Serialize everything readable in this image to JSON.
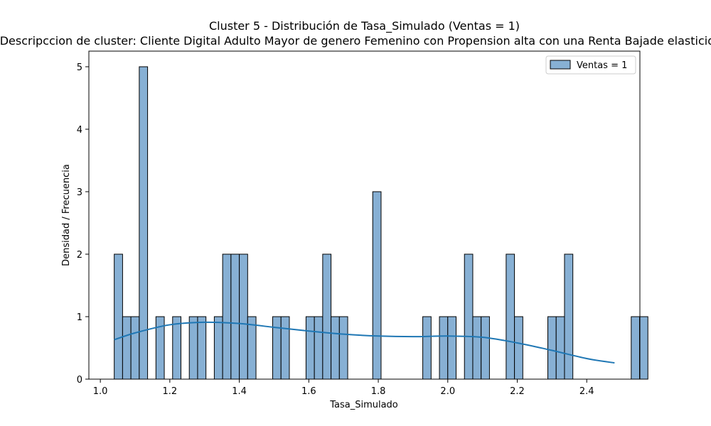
{
  "chart_data": {
    "type": "bar",
    "title": "Cluster 5 - Distribución de Tasa_Simulado (Ventas = 1)",
    "subtitle": "Descripccion de cluster: Cliente Digital Adulto Mayor de genero Femenino con Propension alta con una Renta Bajade elasticidad",
    "xlabel": "Tasa_Simulado",
    "ylabel": "Densidad / Frecuencia",
    "xlim": [
      0.967,
      2.553
    ],
    "ylim": [
      0,
      5.25
    ],
    "xticks": [
      "1.0",
      "1.2",
      "1.4",
      "1.6",
      "1.8",
      "2.0",
      "2.2",
      "2.4"
    ],
    "yticks": [
      "0",
      "1",
      "2",
      "3",
      "4",
      "5"
    ],
    "grid": false,
    "legend": {
      "position": "top-right",
      "entries": [
        "Ventas = 1"
      ]
    },
    "bin_start": 1.04,
    "bin_width": 0.024,
    "series": [
      {
        "name": "Ventas = 1",
        "color": "#87b0d4",
        "edge_color": "#000000",
        "values": [
          2,
          1,
          1,
          5,
          0,
          1,
          0,
          1,
          0,
          1,
          1,
          0,
          1,
          2,
          2,
          2,
          1,
          0,
          0,
          1,
          1,
          0,
          0,
          1,
          1,
          2,
          1,
          1,
          0,
          0,
          0,
          3,
          0,
          0,
          0,
          0,
          0,
          1,
          0,
          1,
          1,
          0,
          2,
          1,
          1,
          0,
          0,
          2,
          1,
          0,
          0,
          0,
          1,
          1,
          2,
          0,
          0,
          0,
          0,
          0,
          0,
          0,
          1,
          1
        ]
      }
    ],
    "kde": {
      "color": "#1f77b4",
      "x": [
        1.04,
        1.1,
        1.2,
        1.3,
        1.4,
        1.5,
        1.6,
        1.7,
        1.8,
        1.9,
        2.0,
        2.1,
        2.2,
        2.3,
        2.4,
        2.48
      ],
      "y": [
        0.63,
        0.74,
        0.87,
        0.91,
        0.89,
        0.83,
        0.77,
        0.72,
        0.69,
        0.68,
        0.69,
        0.67,
        0.58,
        0.46,
        0.33,
        0.26
      ]
    }
  }
}
